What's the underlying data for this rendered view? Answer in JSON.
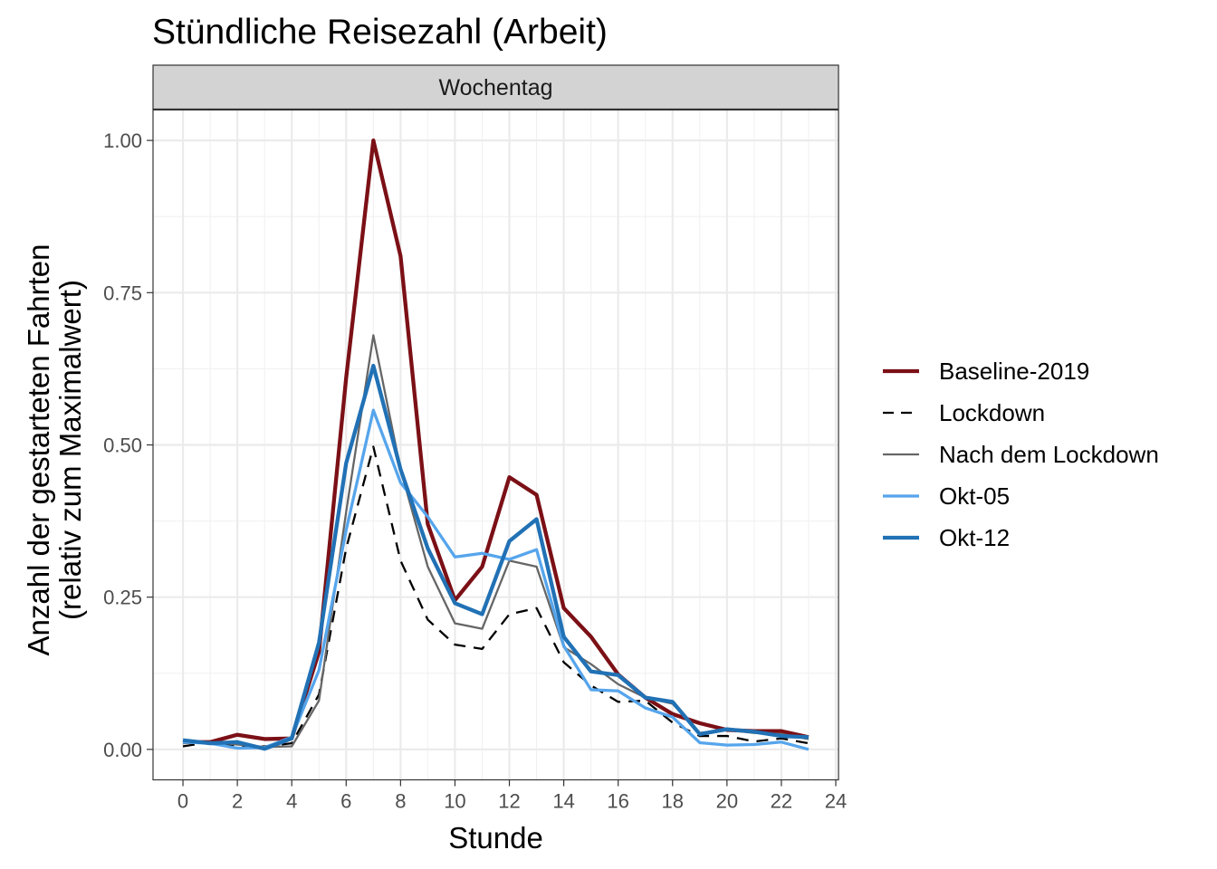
{
  "chart_data": {
    "type": "line",
    "title": "Stündliche Reisezahl (Arbeit)",
    "facet_label": "Wochentag",
    "xlabel": "Stunde",
    "ylabel_line1": "Anzahl der gestarteten Fahrten",
    "ylabel_line2": "(relativ zum Maximalwert)",
    "xlim": [
      -1.1,
      24.1
    ],
    "ylim": [
      -0.05,
      1.05
    ],
    "x_ticks": [
      0,
      2,
      4,
      6,
      8,
      10,
      12,
      14,
      16,
      18,
      20,
      22,
      24
    ],
    "x_tick_labels": [
      "0",
      "2",
      "4",
      "6",
      "8",
      "10",
      "12",
      "14",
      "16",
      "18",
      "20",
      "22",
      "24"
    ],
    "y_ticks": [
      0,
      0.25,
      0.5,
      0.75,
      1.0
    ],
    "y_tick_labels": [
      "0.00",
      "0.25",
      "0.50",
      "0.75",
      "1.00"
    ],
    "grid": true,
    "legend_position": "right",
    "x": [
      0,
      1,
      2,
      3,
      4,
      5,
      6,
      7,
      8,
      9,
      10,
      11,
      12,
      13,
      14,
      15,
      16,
      17,
      18,
      19,
      20,
      21,
      22,
      23
    ],
    "series": [
      {
        "name": "Baseline-2019",
        "color": "#7b1016",
        "dash": "solid",
        "width": "thick",
        "values": [
          0.012,
          0.012,
          0.024,
          0.017,
          0.018,
          0.16,
          0.61,
          1.0,
          0.81,
          0.37,
          0.245,
          0.3,
          0.447,
          0.418,
          0.232,
          0.185,
          0.123,
          0.085,
          0.058,
          0.043,
          0.032,
          0.03,
          0.03,
          0.02
        ]
      },
      {
        "name": "Lockdown",
        "color": "#000000",
        "dash": "dashed",
        "width": "thin",
        "values": [
          0.005,
          0.012,
          0.005,
          0.005,
          0.01,
          0.09,
          0.33,
          0.497,
          0.31,
          0.213,
          0.172,
          0.165,
          0.222,
          0.232,
          0.143,
          0.105,
          0.078,
          0.08,
          0.044,
          0.022,
          0.022,
          0.013,
          0.018,
          0.01
        ]
      },
      {
        "name": "Nach dem Lockdown",
        "color": "#666666",
        "dash": "solid",
        "width": "thin",
        "values": [
          0.01,
          0.012,
          0.008,
          0.004,
          0.005,
          0.08,
          0.39,
          0.68,
          0.46,
          0.3,
          0.207,
          0.198,
          0.31,
          0.3,
          0.168,
          0.14,
          0.107,
          0.085,
          0.075,
          0.027,
          0.032,
          0.027,
          0.025,
          0.017
        ]
      },
      {
        "name": "Okt-05",
        "color": "#56a5ec",
        "dash": "solid",
        "width": "medium",
        "values": [
          0.012,
          0.01,
          0.002,
          0.003,
          0.02,
          0.13,
          0.36,
          0.557,
          0.438,
          0.382,
          0.316,
          0.322,
          0.312,
          0.328,
          0.17,
          0.098,
          0.096,
          0.068,
          0.053,
          0.011,
          0.007,
          0.008,
          0.012,
          0.0
        ]
      },
      {
        "name": "Okt-12",
        "color": "#2171b5",
        "dash": "solid",
        "width": "thick",
        "values": [
          0.015,
          0.01,
          0.012,
          0.001,
          0.018,
          0.175,
          0.47,
          0.63,
          0.46,
          0.33,
          0.24,
          0.222,
          0.342,
          0.378,
          0.185,
          0.128,
          0.122,
          0.085,
          0.078,
          0.025,
          0.033,
          0.029,
          0.022,
          0.02
        ]
      }
    ]
  }
}
